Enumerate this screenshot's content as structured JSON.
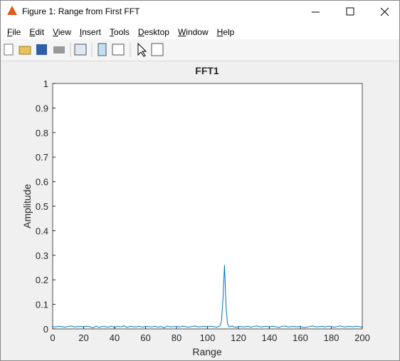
{
  "window": {
    "title": "Figure 1: Range from First FFT",
    "menu": [
      "File",
      "Edit",
      "View",
      "Insert",
      "Tools",
      "Desktop",
      "Window",
      "Help"
    ]
  },
  "chart_data": {
    "type": "line",
    "title": "FFT1",
    "x_label": "Range",
    "y_label": "Amplitude",
    "color": "#0072bd",
    "x": [
      0,
      2,
      4,
      6,
      8,
      10,
      12,
      14,
      16,
      18,
      20,
      22,
      24,
      26,
      28,
      30,
      32,
      34,
      36,
      38,
      40,
      42,
      44,
      46,
      48,
      50,
      52,
      54,
      56,
      58,
      60,
      62,
      64,
      66,
      68,
      70,
      72,
      74,
      76,
      78,
      80,
      82,
      84,
      86,
      88,
      90,
      92,
      94,
      96,
      98,
      100,
      102,
      104,
      106,
      108,
      109,
      110,
      111,
      112,
      113,
      114,
      116,
      118,
      120,
      122,
      124,
      126,
      128,
      130,
      132,
      134,
      136,
      138,
      140,
      142,
      144,
      146,
      148,
      150,
      152,
      154,
      156,
      158,
      160,
      162,
      164,
      166,
      168,
      170,
      172,
      174,
      176,
      178,
      180,
      182,
      184,
      186,
      188,
      190,
      192,
      194,
      196,
      198,
      200
    ],
    "values": [
      0.01,
      0.008,
      0.011,
      0.009,
      0.007,
      0.01,
      0.012,
      0.008,
      0.009,
      0.01,
      0.008,
      0.011,
      0.009,
      0.004,
      0.011,
      0.006,
      0.01,
      0.009,
      0.007,
      0.012,
      0.005,
      0.011,
      0.008,
      0.013,
      0.006,
      0.01,
      0.009,
      0.008,
      0.011,
      0.007,
      0.01,
      0.009,
      0.008,
      0.011,
      0.007,
      0.01,
      0.004,
      0.012,
      0.008,
      0.009,
      0.01,
      0.008,
      0.011,
      0.009,
      0.007,
      0.01,
      0.012,
      0.008,
      0.009,
      0.01,
      0.008,
      0.011,
      0.009,
      0.007,
      0.012,
      0.03,
      0.12,
      0.26,
      0.09,
      0.02,
      0.008,
      0.012,
      0.006,
      0.01,
      0.009,
      0.008,
      0.011,
      0.007,
      0.01,
      0.012,
      0.008,
      0.009,
      0.01,
      0.008,
      0.011,
      0.009,
      0.006,
      0.01,
      0.012,
      0.008,
      0.009,
      0.01,
      0.008,
      0.011,
      0.005,
      0.007,
      0.01,
      0.012,
      0.008,
      0.009,
      0.01,
      0.008,
      0.011,
      0.009,
      0.007,
      0.01,
      0.012,
      0.008,
      0.009,
      0.01,
      0.008,
      0.011,
      0.009,
      0.007
    ],
    "xlim": [
      0,
      200
    ],
    "ylim": [
      0,
      1
    ],
    "xticks": [
      0,
      20,
      40,
      60,
      80,
      100,
      120,
      140,
      160,
      180,
      200
    ],
    "yticks": [
      0,
      0.1,
      0.2,
      0.3,
      0.4,
      0.5,
      0.6,
      0.7,
      0.8,
      0.9,
      1
    ]
  }
}
